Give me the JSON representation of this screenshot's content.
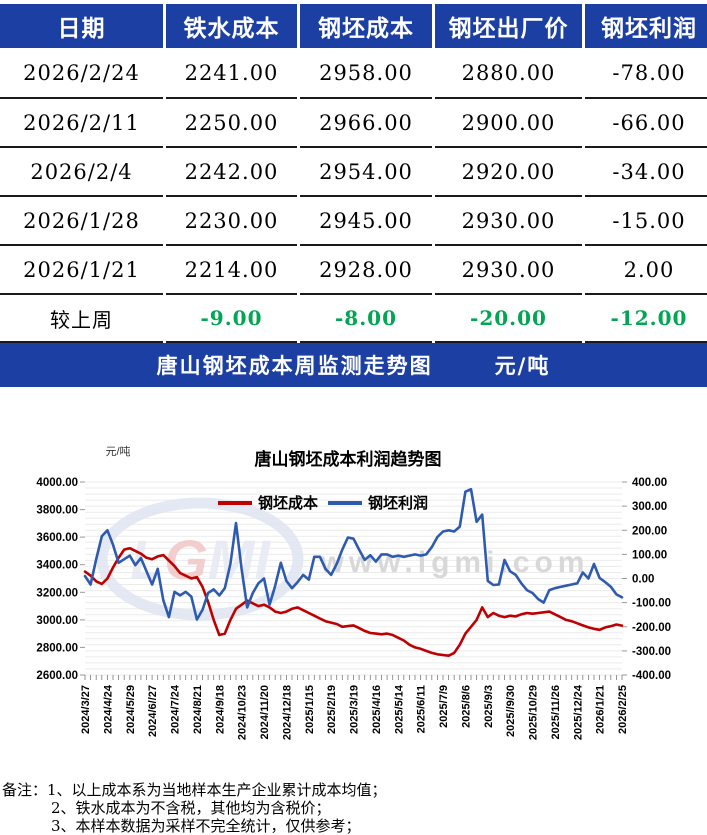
{
  "colors": {
    "header_bg": "#1c3fa3",
    "delta_green": "#00a651",
    "cost_red": "#c00000",
    "profit_blue": "#2e5bb0",
    "grid_line": "#ebebeb",
    "watermark_gray": "#d8d8d8"
  },
  "table": {
    "headers": [
      "日期",
      "铁水成本",
      "钢坯成本",
      "钢坯出厂价",
      "钢坯利润"
    ],
    "rows": [
      [
        "2026/2/24",
        "2241.00",
        "2958.00",
        "2880.00",
        "-78.00"
      ],
      [
        "2026/2/11",
        "2250.00",
        "2966.00",
        "2900.00",
        "-66.00"
      ],
      [
        "2026/2/4",
        "2242.00",
        "2954.00",
        "2920.00",
        "-34.00"
      ],
      [
        "2026/1/28",
        "2230.00",
        "2945.00",
        "2930.00",
        "-15.00"
      ],
      [
        "2026/1/21",
        "2214.00",
        "2928.00",
        "2930.00",
        "2.00"
      ]
    ],
    "delta_row": {
      "label": "较上周",
      "values": [
        "-9.00",
        "-8.00",
        "-20.00",
        "-12.00"
      ]
    }
  },
  "banner": {
    "title": "唐山钢坯成本周监测走势图",
    "unit": "元/吨"
  },
  "chart_data": {
    "type": "line",
    "title": "唐山钢坯成本利润趋势图",
    "ylabel_left": "元/吨",
    "left_axis": {
      "min": 2600,
      "max": 4000,
      "step": 200,
      "tick_format": "0.00"
    },
    "right_axis": {
      "min": -400,
      "max": 400,
      "step": 100,
      "tick_format": "0.00"
    },
    "grid": "on",
    "legend_position": "top-center",
    "x_tick_labels": [
      "2024/3/27",
      "2024/4/24",
      "2024/5/29",
      "2024/6//27",
      "2024/7/24",
      "2024/8/21",
      "2024/9/18",
      "2024/10/23",
      "2024/11/20",
      "2024/12/18",
      "2025/1/15",
      "2025/2/19",
      "2025/3/19",
      "2025/4/16",
      "2025/5/14",
      "2025/6/11",
      "2025/7/9",
      "2025/8/6",
      "2025/9/3",
      "2025//9/30",
      "2025/10/29",
      "2025/11/26",
      "2025/12/24",
      "2026/1/21",
      "2026/2/25"
    ],
    "series": [
      {
        "name": "钢坯成本",
        "axis": "left",
        "color": "#c00000",
        "values": [
          3350,
          3320,
          3280,
          3260,
          3300,
          3380,
          3450,
          3510,
          3520,
          3500,
          3480,
          3450,
          3440,
          3460,
          3470,
          3430,
          3390,
          3340,
          3320,
          3300,
          3310,
          3240,
          3130,
          3000,
          2890,
          2900,
          3000,
          3080,
          3110,
          3140,
          3120,
          3100,
          3110,
          3090,
          3060,
          3050,
          3060,
          3080,
          3090,
          3070,
          3050,
          3030,
          3010,
          2990,
          2980,
          2970,
          2950,
          2955,
          2960,
          2940,
          2920,
          2905,
          2900,
          2895,
          2900,
          2890,
          2870,
          2850,
          2820,
          2800,
          2790,
          2775,
          2760,
          2750,
          2745,
          2740,
          2760,
          2820,
          2900,
          2950,
          3000,
          3090,
          3020,
          3050,
          3030,
          3020,
          3030,
          3025,
          3040,
          3050,
          3045,
          3050,
          3055,
          3060,
          3040,
          3020,
          3000,
          2990,
          2975,
          2960,
          2945,
          2935,
          2928,
          2945,
          2954,
          2966,
          2958
        ]
      },
      {
        "name": "钢坯利润",
        "axis": "right",
        "color": "#2e5bb0",
        "values": [
          10,
          -25,
          80,
          175,
          200,
          140,
          65,
          80,
          95,
          55,
          85,
          30,
          -25,
          40,
          -90,
          -160,
          -55,
          -70,
          -55,
          -75,
          -170,
          -130,
          -60,
          -45,
          -70,
          -40,
          60,
          230,
          40,
          -120,
          -60,
          -20,
          0,
          -108,
          -30,
          65,
          -10,
          -40,
          -15,
          15,
          -5,
          90,
          90,
          40,
          15,
          60,
          120,
          170,
          165,
          120,
          77,
          96,
          70,
          100,
          100,
          90,
          95,
          90,
          95,
          100,
          95,
          100,
          130,
          172,
          195,
          200,
          195,
          215,
          360,
          370,
          235,
          265,
          -10,
          -27,
          -25,
          77,
          30,
          15,
          -20,
          -48,
          -60,
          -85,
          -100,
          -48,
          -40,
          -35,
          -30,
          -25,
          -20,
          25,
          0,
          60,
          2,
          -15,
          -34,
          -66,
          -78
        ]
      }
    ],
    "watermark": {
      "text": "www.lgmi.com",
      "logo": "LGMI"
    }
  },
  "notes": {
    "prefix": "备注：",
    "items": [
      "1、以上成本系为当地样本生产企业累计成本均值；",
      "2、铁水成本为不含税，其他均为含税价；",
      "3、本样本数据为采样不完全统计，仅供参考；"
    ]
  }
}
